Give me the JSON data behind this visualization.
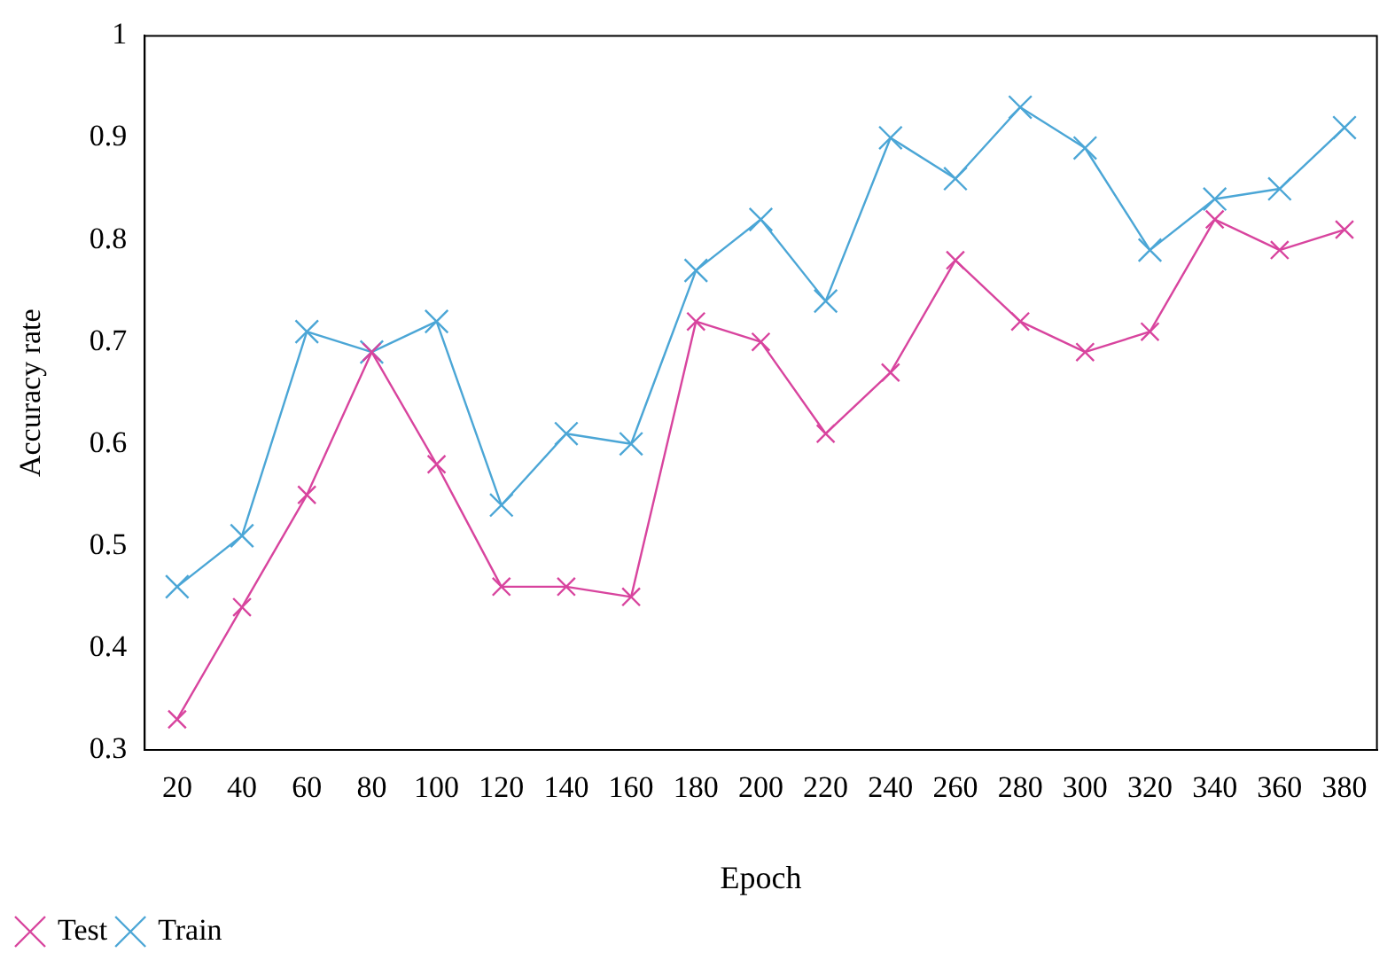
{
  "chart_data": {
    "type": "line",
    "xlabel": "Epoch",
    "ylabel": "Accuracy rate",
    "categories": [
      "20",
      "40",
      "60",
      "80",
      "100",
      "120",
      "140",
      "160",
      "180",
      "200",
      "220",
      "240",
      "260",
      "280",
      "300",
      "320",
      "340",
      "360",
      "380"
    ],
    "series": [
      {
        "name": "Test",
        "color": "#d8449e",
        "values": [
          0.33,
          0.44,
          0.55,
          0.69,
          0.58,
          0.46,
          0.46,
          0.45,
          0.72,
          0.7,
          0.61,
          0.67,
          0.78,
          0.72,
          0.69,
          0.71,
          0.82,
          0.79,
          0.81
        ]
      },
      {
        "name": "Train",
        "color": "#4ba6d6",
        "values": [
          0.46,
          0.51,
          0.71,
          0.69,
          0.72,
          0.54,
          0.61,
          0.6,
          0.77,
          0.82,
          0.74,
          0.9,
          0.86,
          0.93,
          0.89,
          0.79,
          0.84,
          0.85,
          0.91
        ]
      }
    ],
    "ylim": [
      0.3,
      1
    ],
    "yticks": [
      0.3,
      0.4,
      0.5,
      0.6,
      0.7,
      0.8,
      0.9,
      1
    ],
    "grid": false,
    "legend": "bottom left",
    "marker": "cross",
    "line_style": "solid"
  }
}
